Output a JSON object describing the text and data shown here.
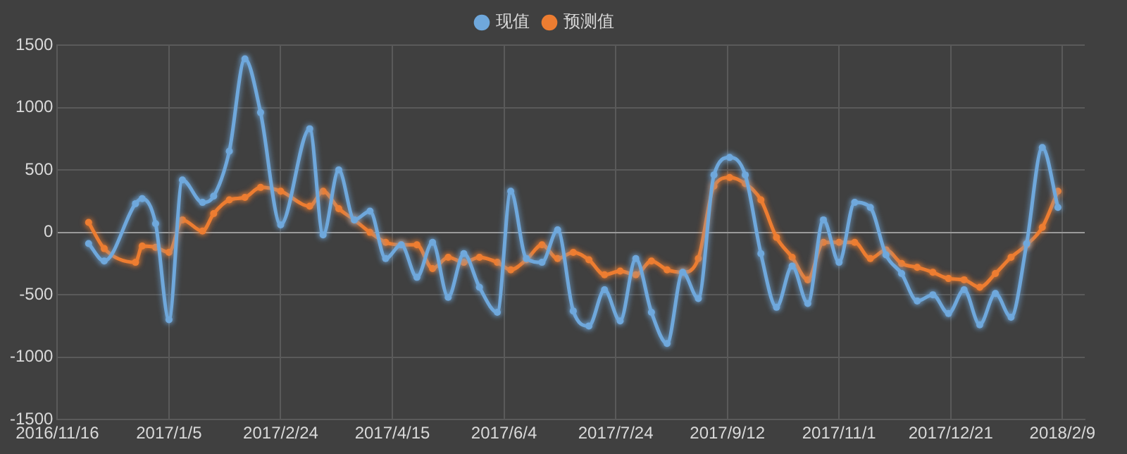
{
  "chart_data": {
    "type": "line",
    "legend": "top",
    "grid": true,
    "marker": "circle",
    "line_style": "solid",
    "x": [
      "2016-11-30",
      "2016-12-07",
      "2016-12-21",
      "2016-12-24",
      "2016-12-30",
      "2017-01-05",
      "2017-01-11",
      "2017-01-20",
      "2017-01-25",
      "2017-02-01",
      "2017-02-08",
      "2017-02-15",
      "2017-02-24",
      "2017-03-09",
      "2017-03-15",
      "2017-03-22",
      "2017-03-29",
      "2017-04-05",
      "2017-04-12",
      "2017-04-19",
      "2017-04-26",
      "2017-05-03",
      "2017-05-10",
      "2017-05-17",
      "2017-05-24",
      "2017-06-01",
      "2017-06-07",
      "2017-06-14",
      "2017-06-21",
      "2017-06-28",
      "2017-07-05",
      "2017-07-12",
      "2017-07-19",
      "2017-07-26",
      "2017-08-02",
      "2017-08-09",
      "2017-08-16",
      "2017-08-23",
      "2017-08-30",
      "2017-09-06",
      "2017-09-13",
      "2017-09-20",
      "2017-09-27",
      "2017-10-04",
      "2017-10-11",
      "2017-10-18",
      "2017-10-25",
      "2017-11-01",
      "2017-11-08",
      "2017-11-15",
      "2017-11-22",
      "2017-11-29",
      "2017-12-06",
      "2017-12-13",
      "2017-12-20",
      "2017-12-27",
      "2018-01-03",
      "2018-01-10",
      "2018-01-17",
      "2018-01-24",
      "2018-01-31",
      "2018-02-07"
    ],
    "series": [
      {
        "name": "现值",
        "color": "#6fa8dc",
        "values": [
          -90,
          -230,
          230,
          270,
          70,
          -700,
          420,
          240,
          290,
          650,
          1390,
          960,
          60,
          830,
          -20,
          500,
          100,
          170,
          -210,
          -100,
          -360,
          -80,
          -520,
          -170,
          -440,
          -640,
          330,
          -210,
          -240,
          20,
          -630,
          -750,
          -460,
          -710,
          -210,
          -640,
          -890,
          -320,
          -530,
          460,
          600,
          460,
          -170,
          -600,
          -270,
          -570,
          100,
          -240,
          240,
          200,
          -180,
          -330,
          -550,
          -500,
          -650,
          -460,
          -740,
          -490,
          -680,
          -90,
          680,
          200
        ]
      },
      {
        "name": "预测值",
        "color": "#ed7d31",
        "values": [
          80,
          -130,
          -240,
          -110,
          -120,
          -160,
          100,
          10,
          150,
          260,
          280,
          360,
          330,
          210,
          330,
          190,
          100,
          0,
          -80,
          -100,
          -100,
          -290,
          -200,
          -240,
          -200,
          -240,
          -300,
          -220,
          -100,
          -210,
          -160,
          -220,
          -340,
          -310,
          -340,
          -230,
          -300,
          -320,
          -210,
          370,
          440,
          390,
          260,
          -40,
          -200,
          -380,
          -80,
          -80,
          -80,
          -210,
          -140,
          -250,
          -280,
          -320,
          -370,
          -380,
          -440,
          -330,
          -200,
          -100,
          40,
          330
        ]
      }
    ],
    "xlim": [
      "2016-11-16",
      "2018-02-19"
    ],
    "xticks": [
      {
        "value": "2016-11-16",
        "label": "2016/11/16"
      },
      {
        "value": "2017-01-05",
        "label": "2017/1/5"
      },
      {
        "value": "2017-02-24",
        "label": "2017/2/24"
      },
      {
        "value": "2017-04-15",
        "label": "2017/4/15"
      },
      {
        "value": "2017-06-04",
        "label": "2017/6/4"
      },
      {
        "value": "2017-07-24",
        "label": "2017/7/24"
      },
      {
        "value": "2017-09-12",
        "label": "2017/9/12"
      },
      {
        "value": "2017-11-01",
        "label": "2017/11/1"
      },
      {
        "value": "2017-12-21",
        "label": "2017/12/21"
      },
      {
        "value": "2018-02-09",
        "label": "2018/2/9"
      }
    ],
    "ylim": [
      -1500,
      1500
    ],
    "yticks": [
      -1500,
      -1000,
      -500,
      0,
      500,
      1000,
      1500
    ]
  }
}
